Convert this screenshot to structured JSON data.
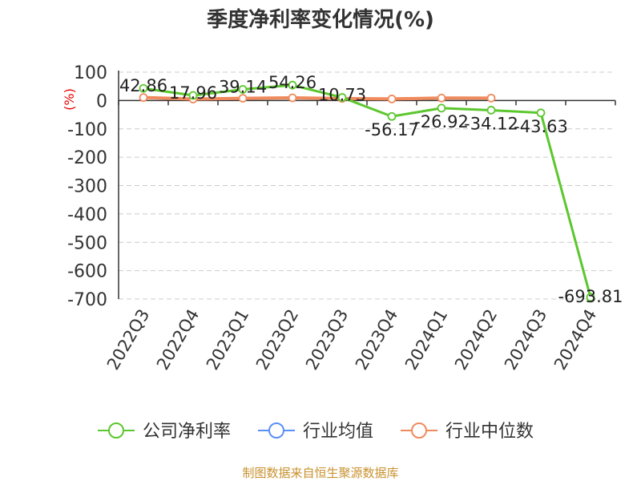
{
  "chart_data": {
    "type": "line",
    "title": "季度净利率变化情况(%)",
    "ylabel": "(%)",
    "xlabel": "",
    "ylim": [
      -700,
      100
    ],
    "yticks": [
      100,
      0,
      -100,
      -200,
      -300,
      -400,
      -500,
      -600,
      -700
    ],
    "grid": true,
    "legend_position": "bottom",
    "categories": [
      "2022Q3",
      "2022Q4",
      "2023Q1",
      "2023Q2",
      "2023Q3",
      "2023Q4",
      "2024Q1",
      "2024Q2",
      "2024Q3",
      "2024Q4"
    ],
    "series": [
      {
        "name": "公司净利率",
        "color": "#5cc72e",
        "values": [
          42.86,
          17.96,
          39.14,
          54.26,
          10.73,
          -56.17,
          -26.92,
          -34.12,
          -43.63,
          -693.81
        ],
        "data_labels": [
          "42.86",
          "17.96",
          "39.14",
          "54.26",
          "10.73",
          "-56.17",
          "-26.92",
          "-34.12",
          "-43.63",
          "-693.81"
        ]
      },
      {
        "name": "行业均值",
        "color": "#5b8ff9",
        "values": [
          null,
          null,
          null,
          null,
          null,
          null,
          null,
          null,
          null,
          null
        ]
      },
      {
        "name": "行业中位数",
        "color": "#f08a5d",
        "values": [
          10.5,
          5.2,
          7.8,
          9.5,
          7.2,
          5.5,
          8.8,
          8.5,
          null,
          null
        ]
      }
    ],
    "source": "制图数据来自恒生聚源数据库"
  }
}
